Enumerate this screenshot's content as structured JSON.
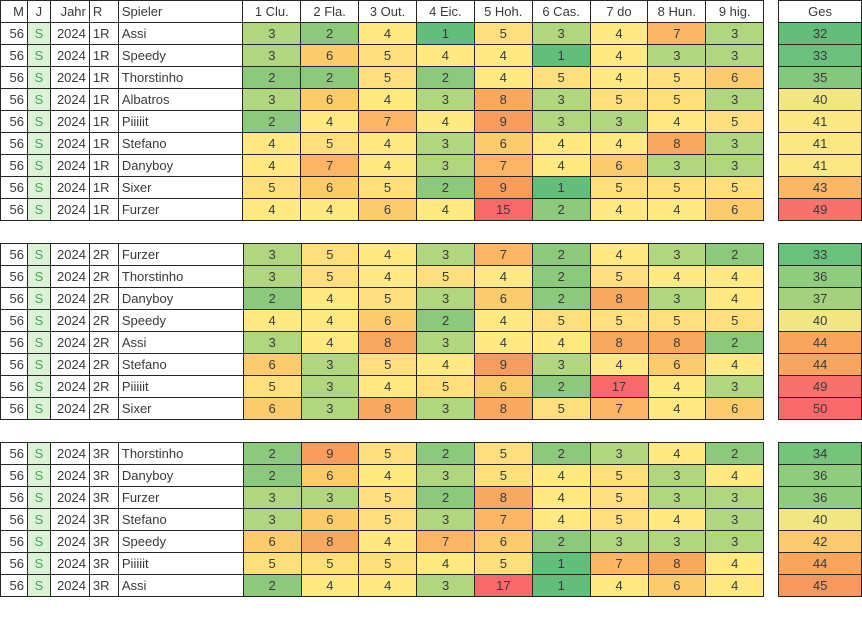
{
  "sheet": {
    "header": {
      "m": "M",
      "j": "J",
      "jahr": "Jahr",
      "r": "R",
      "spieler": "Spieler",
      "holes": [
        "1 Clu.",
        "2 Fla.",
        "3 Out.",
        "4 Eic.",
        "5 Hoh.",
        "6 Cas.",
        "7 do",
        "8 Hun.",
        "9 hig."
      ],
      "ges": "Ges"
    },
    "blocks": [
      {
        "round": "1R",
        "rows": [
          {
            "m": 56,
            "j": "S",
            "jahr": 2024,
            "r": "1R",
            "spieler": "Assi",
            "holes": [
              3,
              2,
              4,
              1,
              5,
              3,
              4,
              7,
              3
            ],
            "ges": 32
          },
          {
            "m": 56,
            "j": "S",
            "jahr": 2024,
            "r": "1R",
            "spieler": "Speedy",
            "holes": [
              3,
              6,
              5,
              4,
              4,
              1,
              4,
              3,
              3
            ],
            "ges": 33
          },
          {
            "m": 56,
            "j": "S",
            "jahr": 2024,
            "r": "1R",
            "spieler": "Thorstinho",
            "holes": [
              2,
              2,
              5,
              2,
              4,
              5,
              4,
              5,
              6
            ],
            "ges": 35
          },
          {
            "m": 56,
            "j": "S",
            "jahr": 2024,
            "r": "1R",
            "spieler": "Albatros",
            "holes": [
              3,
              6,
              4,
              3,
              8,
              3,
              5,
              5,
              3
            ],
            "ges": 40
          },
          {
            "m": 56,
            "j": "S",
            "jahr": 2024,
            "r": "1R",
            "spieler": "Piiiiit",
            "holes": [
              2,
              4,
              7,
              4,
              9,
              3,
              3,
              4,
              5
            ],
            "ges": 41
          },
          {
            "m": 56,
            "j": "S",
            "jahr": 2024,
            "r": "1R",
            "spieler": "Stefano",
            "holes": [
              4,
              5,
              4,
              3,
              6,
              4,
              4,
              8,
              3
            ],
            "ges": 41
          },
          {
            "m": 56,
            "j": "S",
            "jahr": 2024,
            "r": "1R",
            "spieler": "Danyboy",
            "holes": [
              4,
              7,
              4,
              3,
              7,
              4,
              6,
              3,
              3
            ],
            "ges": 41
          },
          {
            "m": 56,
            "j": "S",
            "jahr": 2024,
            "r": "1R",
            "spieler": "Sixer",
            "holes": [
              5,
              6,
              5,
              2,
              9,
              1,
              5,
              5,
              5
            ],
            "ges": 43
          },
          {
            "m": 56,
            "j": "S",
            "jahr": 2024,
            "r": "1R",
            "spieler": "Furzer",
            "holes": [
              4,
              4,
              6,
              4,
              15,
              2,
              4,
              4,
              6
            ],
            "ges": 49
          }
        ]
      },
      {
        "round": "2R",
        "rows": [
          {
            "m": 56,
            "j": "S",
            "jahr": 2024,
            "r": "2R",
            "spieler": "Furzer",
            "holes": [
              3,
              5,
              4,
              3,
              7,
              2,
              4,
              3,
              2
            ],
            "ges": 33
          },
          {
            "m": 56,
            "j": "S",
            "jahr": 2024,
            "r": "2R",
            "spieler": "Thorstinho",
            "holes": [
              3,
              5,
              4,
              5,
              4,
              2,
              5,
              4,
              4
            ],
            "ges": 36
          },
          {
            "m": 56,
            "j": "S",
            "jahr": 2024,
            "r": "2R",
            "spieler": "Danyboy",
            "holes": [
              2,
              4,
              5,
              3,
              6,
              2,
              8,
              3,
              4
            ],
            "ges": 37
          },
          {
            "m": 56,
            "j": "S",
            "jahr": 2024,
            "r": "2R",
            "spieler": "Speedy",
            "holes": [
              4,
              4,
              6,
              2,
              4,
              5,
              5,
              5,
              5
            ],
            "ges": 40
          },
          {
            "m": 56,
            "j": "S",
            "jahr": 2024,
            "r": "2R",
            "spieler": "Assi",
            "holes": [
              3,
              4,
              8,
              3,
              4,
              4,
              8,
              8,
              2
            ],
            "ges": 44
          },
          {
            "m": 56,
            "j": "S",
            "jahr": 2024,
            "r": "2R",
            "spieler": "Stefano",
            "holes": [
              6,
              3,
              5,
              4,
              9,
              3,
              4,
              6,
              4
            ],
            "ges": 44
          },
          {
            "m": 56,
            "j": "S",
            "jahr": 2024,
            "r": "2R",
            "spieler": "Piiiiit",
            "holes": [
              5,
              3,
              4,
              5,
              6,
              2,
              17,
              4,
              3
            ],
            "ges": 49
          },
          {
            "m": 56,
            "j": "S",
            "jahr": 2024,
            "r": "2R",
            "spieler": "Sixer",
            "holes": [
              6,
              3,
              8,
              3,
              8,
              5,
              7,
              4,
              6
            ],
            "ges": 50
          }
        ]
      },
      {
        "round": "3R",
        "rows": [
          {
            "m": 56,
            "j": "S",
            "jahr": 2024,
            "r": "3R",
            "spieler": "Thorstinho",
            "holes": [
              2,
              9,
              5,
              2,
              5,
              2,
              3,
              4,
              2
            ],
            "ges": 34
          },
          {
            "m": 56,
            "j": "S",
            "jahr": 2024,
            "r": "3R",
            "spieler": "Danyboy",
            "holes": [
              2,
              6,
              4,
              3,
              5,
              4,
              5,
              3,
              4
            ],
            "ges": 36
          },
          {
            "m": 56,
            "j": "S",
            "jahr": 2024,
            "r": "3R",
            "spieler": "Furzer",
            "holes": [
              3,
              3,
              5,
              2,
              8,
              4,
              5,
              3,
              3
            ],
            "ges": 36
          },
          {
            "m": 56,
            "j": "S",
            "jahr": 2024,
            "r": "3R",
            "spieler": "Stefano",
            "holes": [
              3,
              6,
              5,
              3,
              7,
              4,
              5,
              4,
              3
            ],
            "ges": 40
          },
          {
            "m": 56,
            "j": "S",
            "jahr": 2024,
            "r": "3R",
            "spieler": "Speedy",
            "holes": [
              6,
              8,
              4,
              7,
              6,
              2,
              3,
              3,
              3
            ],
            "ges": 42
          },
          {
            "m": 56,
            "j": "S",
            "jahr": 2024,
            "r": "3R",
            "spieler": "Piiiiit",
            "holes": [
              5,
              5,
              5,
              4,
              5,
              1,
              7,
              8,
              4
            ],
            "ges": 44
          },
          {
            "m": 56,
            "j": "S",
            "jahr": 2024,
            "r": "3R",
            "spieler": "Assi",
            "holes": [
              2,
              4,
              4,
              3,
              17,
              1,
              4,
              6,
              4
            ],
            "ges": 45
          }
        ]
      }
    ],
    "colors": {
      "hole_value_colors": {
        "1": "#63BE7B",
        "2": "#8CC97D",
        "3": "#B2D67F",
        "4": "#FFE983",
        "5": "#FEDF7D",
        "6": "#FBCB6C",
        "7": "#FAB664",
        "8": "#F9A85F",
        "9": "#F89D5D",
        "15": "#F8696B",
        "17": "#F8696B"
      },
      "ges_value_colors": {
        "32": "#63BE7B",
        "33": "#6AC17B",
        "34": "#74C47C",
        "35": "#84C87D",
        "36": "#8FCC7E",
        "37": "#A5D17F",
        "40": "#F0E683",
        "41": "#FBE882",
        "42": "#FBC96E",
        "43": "#FAB765",
        "44": "#F9A55E",
        "45": "#F8985F",
        "49": "#F8726B",
        "50": "#F8696B"
      },
      "s_cell_bg": "#DCF2D6",
      "s_cell_text": "#4E9E5F",
      "border": "#262626",
      "text": "#3A3A3A"
    }
  }
}
